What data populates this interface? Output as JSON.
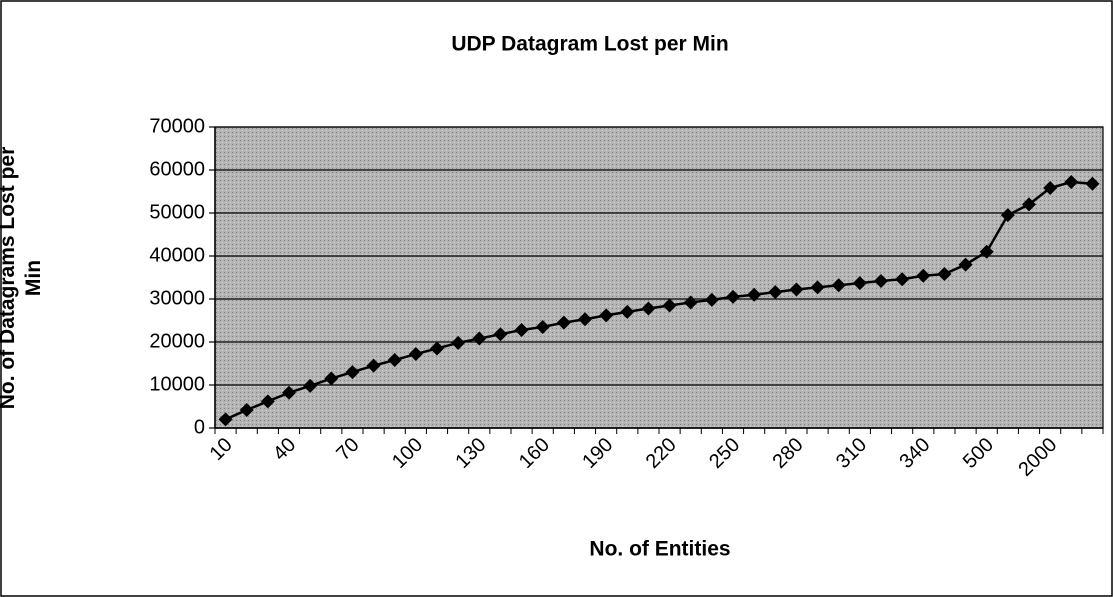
{
  "chart_data": {
    "type": "line",
    "title": "UDP Datagram Lost per Min",
    "x_label": "No. of Entities",
    "y_label": "No. of Datagrams Lost per Min",
    "categories": [
      "10",
      null,
      null,
      "40",
      null,
      null,
      "70",
      null,
      null,
      "100",
      null,
      null,
      "130",
      null,
      null,
      "160",
      null,
      null,
      "190",
      null,
      null,
      "220",
      null,
      null,
      "250",
      null,
      null,
      "280",
      null,
      null,
      "310",
      null,
      null,
      "340",
      null,
      null,
      "500",
      null,
      null,
      "2000",
      null,
      null
    ],
    "series": [
      {
        "name": "UDP Datagram Lost per Min",
        "color": "#000000",
        "values": [
          2000,
          4200,
          6200,
          8200,
          9800,
          11500,
          13000,
          14500,
          15800,
          17200,
          18500,
          19800,
          20800,
          21800,
          22800,
          23500,
          24500,
          25300,
          26200,
          27000,
          27800,
          28500,
          29200,
          29800,
          30500,
          31000,
          31600,
          32200,
          32700,
          33200,
          33700,
          34200,
          34600,
          35400,
          35800,
          38000,
          41000,
          49500,
          52000,
          55800,
          57200,
          56800
        ]
      }
    ],
    "ylim": [
      0,
      70000
    ],
    "yticks": [
      0,
      10000,
      20000,
      30000,
      40000,
      50000,
      60000,
      70000
    ],
    "grid": true,
    "legend": false
  }
}
